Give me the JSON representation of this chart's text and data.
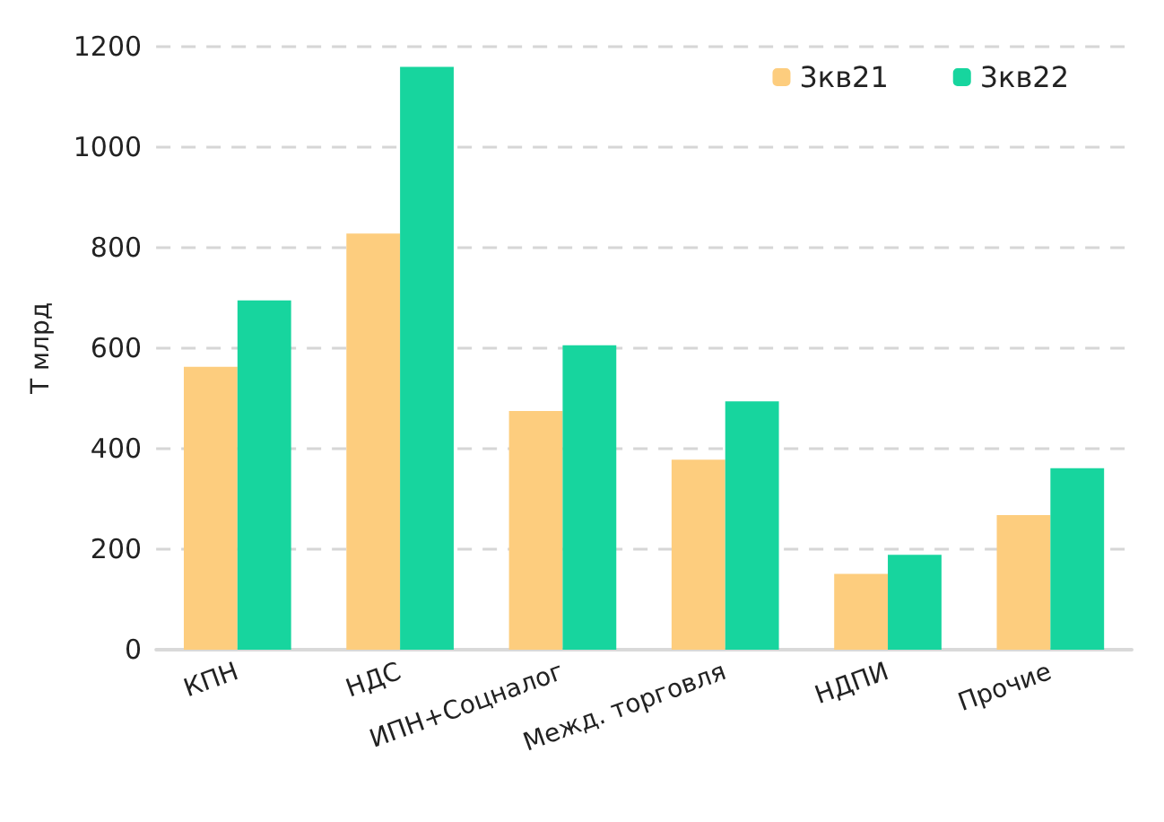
{
  "chart_data": {
    "type": "bar",
    "ylabel": "Т млрд",
    "categories": [
      "КПН",
      "НДС",
      "ИПН+Соцналог",
      "Межд. торговля",
      "НДПИ",
      "Прочие"
    ],
    "series": [
      {
        "name": "3кв21",
        "color": "#fdcd7e",
        "values": [
          563,
          828,
          475,
          378,
          151,
          268
        ]
      },
      {
        "name": "3кв22",
        "color": "#17d59e",
        "values": [
          695,
          1160,
          606,
          494,
          189,
          361
        ]
      }
    ],
    "ylim": [
      0,
      1200
    ],
    "yticks": [
      0,
      200,
      400,
      600,
      800,
      1000,
      1200
    ],
    "grid": "y",
    "legend": "top right"
  }
}
